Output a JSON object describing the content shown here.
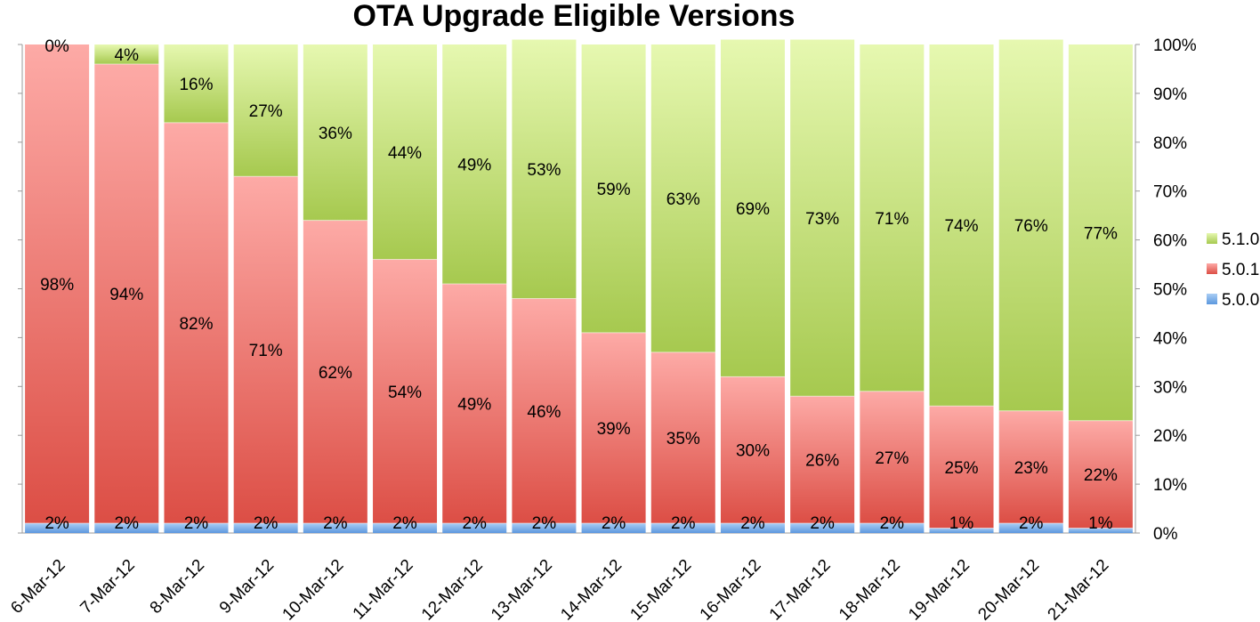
{
  "chart_data": {
    "type": "bar",
    "stacked": true,
    "percent_stacked": true,
    "title": "OTA Upgrade Eligible Versions",
    "xlabel": "",
    "ylabel": "",
    "ylim": [
      0,
      100
    ],
    "y_axis_side": "right",
    "y_tick_labels": [
      "0%",
      "10%",
      "20%",
      "30%",
      "40%",
      "50%",
      "60%",
      "70%",
      "80%",
      "90%",
      "100%"
    ],
    "grid": false,
    "legend_position": "right",
    "categories": [
      "6-Mar-12",
      "7-Mar-12",
      "8-Mar-12",
      "9-Mar-12",
      "10-Mar-12",
      "11-Mar-12",
      "12-Mar-12",
      "13-Mar-12",
      "14-Mar-12",
      "15-Mar-12",
      "16-Mar-12",
      "17-Mar-12",
      "18-Mar-12",
      "19-Mar-12",
      "20-Mar-12",
      "21-Mar-12"
    ],
    "series": [
      {
        "name": "5.0.0",
        "color": "#6fa8e6",
        "values": [
          2,
          2,
          2,
          2,
          2,
          2,
          2,
          2,
          2,
          2,
          2,
          2,
          2,
          1,
          2,
          1
        ]
      },
      {
        "name": "5.0.1",
        "color": "#e6625a",
        "values": [
          98,
          94,
          82,
          71,
          62,
          54,
          49,
          46,
          39,
          35,
          30,
          26,
          27,
          25,
          23,
          22
        ]
      },
      {
        "name": "5.1.0",
        "color": "#b3d45e",
        "values": [
          0,
          4,
          16,
          27,
          36,
          44,
          49,
          53,
          59,
          63,
          69,
          73,
          71,
          74,
          76,
          77
        ]
      }
    ],
    "legend_order": [
      "5.1.0",
      "5.0.1",
      "5.0.0"
    ]
  }
}
